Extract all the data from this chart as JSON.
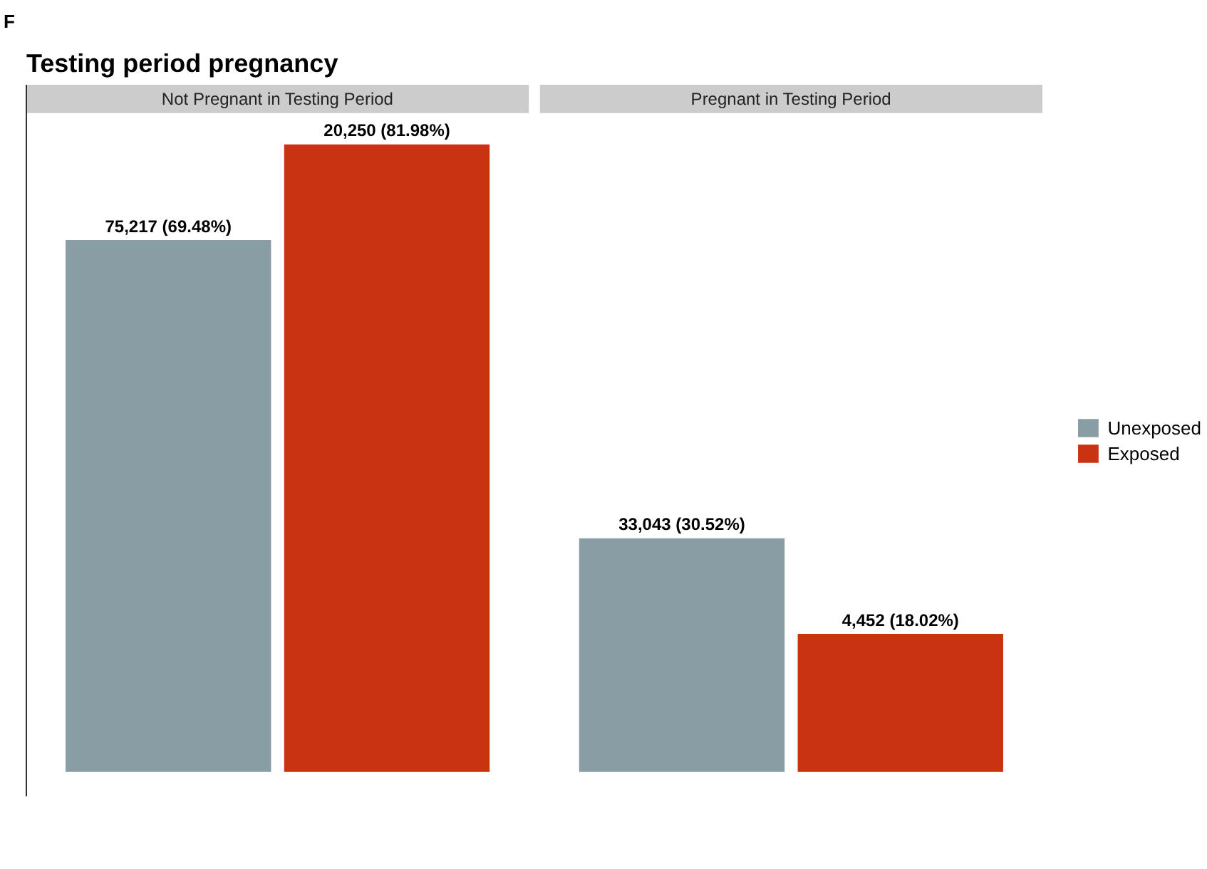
{
  "chart_data": {
    "type": "bar",
    "title": "Testing period pregnancy",
    "annotations": [
      "F"
    ],
    "categories": [
      "Not Pregnant in Testing Period",
      "Pregnant in Testing Period"
    ],
    "series": [
      {
        "name": "Unexposed",
        "color": "#899da4",
        "values": [
          69.48,
          30.52
        ],
        "value_labels": [
          "75,217 (69.48%)",
          "33,043 (30.52%)"
        ]
      },
      {
        "name": "Exposed",
        "color": "#c93312",
        "values": [
          81.98,
          18.02
        ],
        "value_labels": [
          "20,250 (81.98%)",
          "4,452 (18.02%)"
        ]
      }
    ],
    "legend": "right",
    "grid": false
  }
}
